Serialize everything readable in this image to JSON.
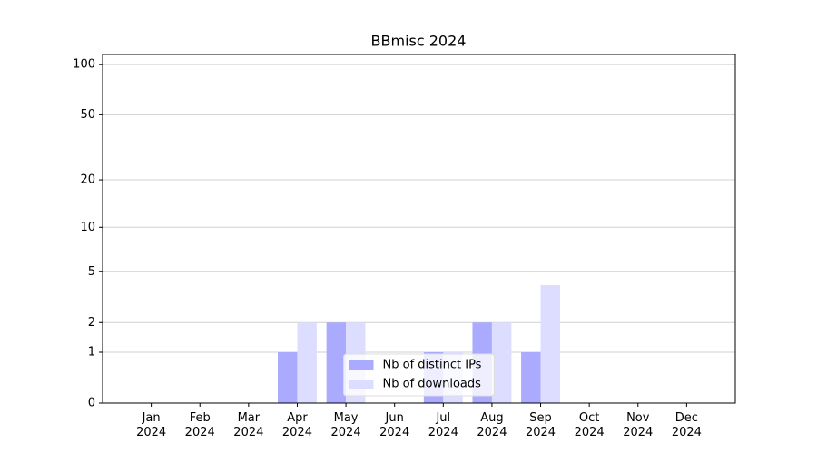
{
  "chart_data": {
    "type": "bar",
    "title": "BBmisc 2024",
    "categories": [
      "Jan 2024",
      "Feb 2024",
      "Mar 2024",
      "Apr 2024",
      "May 2024",
      "Jun 2024",
      "Jul 2024",
      "Aug 2024",
      "Sep 2024",
      "Oct 2024",
      "Nov 2024",
      "Dec 2024"
    ],
    "series": [
      {
        "name": "Nb of distinct IPs",
        "color": "#aaaaff",
        "values": [
          0,
          0,
          0,
          1,
          2,
          0,
          1,
          2,
          1,
          0,
          0,
          0
        ]
      },
      {
        "name": "Nb of downloads",
        "color": "#ddddff",
        "values": [
          0,
          0,
          0,
          2,
          2,
          0,
          1,
          2,
          4,
          0,
          0,
          0
        ]
      }
    ],
    "yscale": "log1p",
    "ylim": [
      0,
      115
    ],
    "yticks": [
      0,
      1,
      2,
      5,
      10,
      20,
      50,
      100
    ],
    "grid": true,
    "legend": "lower center"
  }
}
